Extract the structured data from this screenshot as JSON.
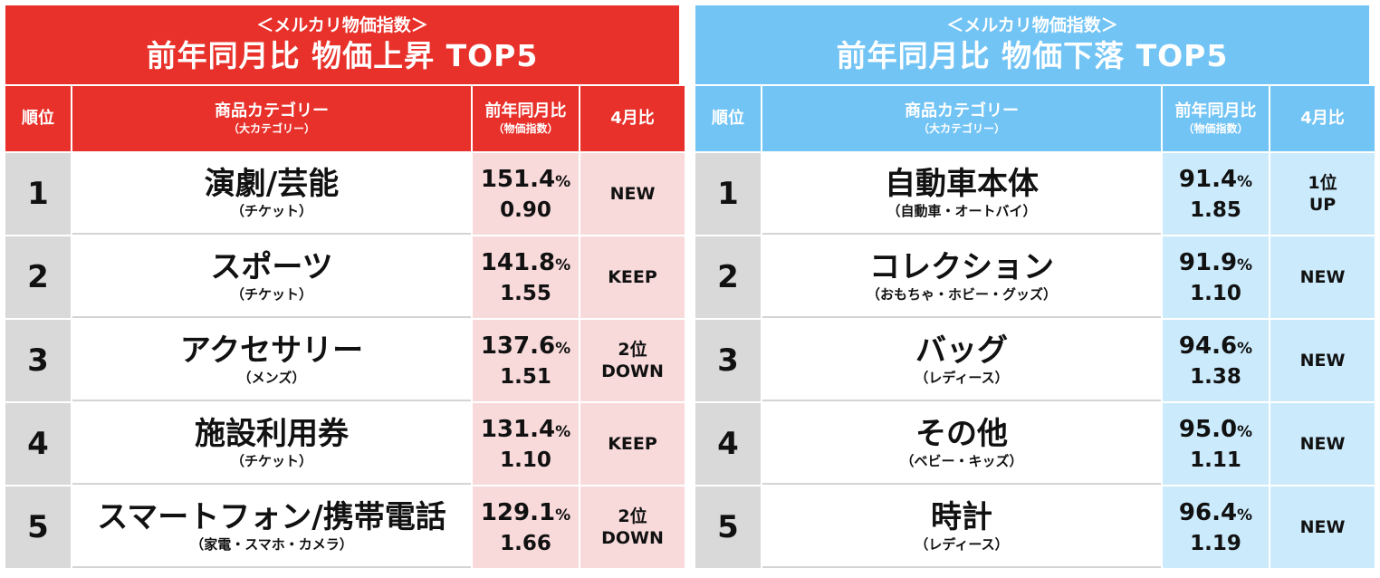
{
  "colors": {
    "red_header": "#e8312a",
    "red_cell": "#f8dadb",
    "blue_header": "#72c4f5",
    "blue_cell": "#cbeafb",
    "rank_gray": "#d9d9d9"
  },
  "left": {
    "subtitle": "＜メルカリ物価指数＞",
    "title": "前年同月比 物価上昇 TOP5",
    "headers": {
      "rank": "順位",
      "category": "商品カテゴリー",
      "category_sub": "（大カテゴリー）",
      "yoy": "前年同月比",
      "yoy_sub": "（物価指数）",
      "change": "4月比"
    },
    "rows": [
      {
        "rank": "1",
        "name": "演劇/芸能",
        "sub": "（チケット）",
        "pct": "151.4",
        "unit": "%",
        "index": "0.90",
        "change1": "NEW",
        "change2": ""
      },
      {
        "rank": "2",
        "name": "スポーツ",
        "sub": "（チケット）",
        "pct": "141.8",
        "unit": "%",
        "index": "1.55",
        "change1": "KEEP",
        "change2": ""
      },
      {
        "rank": "3",
        "name": "アクセサリー",
        "sub": "（メンズ）",
        "pct": "137.6",
        "unit": "%",
        "index": "1.51",
        "change1": "2位",
        "change2": "DOWN"
      },
      {
        "rank": "4",
        "name": "施設利用券",
        "sub": "（チケット）",
        "pct": "131.4",
        "unit": "%",
        "index": "1.10",
        "change1": "KEEP",
        "change2": ""
      },
      {
        "rank": "5",
        "name": "スマートフォン/携帯電話",
        "sub": "（家電・スマホ・カメラ）",
        "pct": "129.1",
        "unit": "%",
        "index": "1.66",
        "change1": "2位",
        "change2": "DOWN"
      }
    ]
  },
  "right": {
    "subtitle": "＜メルカリ物価指数＞",
    "title": "前年同月比 物価下落 TOP5",
    "headers": {
      "rank": "順位",
      "category": "商品カテゴリー",
      "category_sub": "（大カテゴリー）",
      "yoy": "前年同月比",
      "yoy_sub": "（物価指数）",
      "change": "4月比"
    },
    "rows": [
      {
        "rank": "1",
        "name": "自動車本体",
        "sub": "（自動車・オートバイ）",
        "pct": "91.4",
        "unit": "%",
        "index": "1.85",
        "change1": "1位",
        "change2": "UP"
      },
      {
        "rank": "2",
        "name": "コレクション",
        "sub": "（おもちゃ・ホビー・グッズ）",
        "pct": "91.9",
        "unit": "%",
        "index": "1.10",
        "change1": "NEW",
        "change2": ""
      },
      {
        "rank": "3",
        "name": "バッグ",
        "sub": "（レディース）",
        "pct": "94.6",
        "unit": "%",
        "index": "1.38",
        "change1": "NEW",
        "change2": ""
      },
      {
        "rank": "4",
        "name": "その他",
        "sub": "（ベビー・キッズ）",
        "pct": "95.0",
        "unit": "%",
        "index": "1.11",
        "change1": "NEW",
        "change2": ""
      },
      {
        "rank": "5",
        "name": "時計",
        "sub": "（レディース）",
        "pct": "96.4",
        "unit": "%",
        "index": "1.19",
        "change1": "NEW",
        "change2": ""
      }
    ]
  }
}
